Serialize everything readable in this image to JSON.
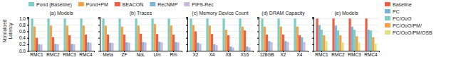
{
  "chart_data": [
    {
      "type": "bar",
      "title": "(a) Models",
      "y_label": "Normalized\nLatency",
      "categories": [
        "RMC1",
        "RMC2",
        "RMC3",
        "RMC4"
      ],
      "series": [
        {
          "name": "Pond (Baseline)",
          "color": "#7ecdc5",
          "values": [
            1.0,
            1.0,
            1.0,
            1.0
          ]
        },
        {
          "name": "Pond+PM",
          "color": "#f5a044",
          "values": [
            0.75,
            0.78,
            0.78,
            0.78
          ]
        },
        {
          "name": "BEACON",
          "color": "#e8604a",
          "values": [
            0.4,
            0.42,
            0.48,
            0.5
          ]
        },
        {
          "name": "RecNMP",
          "color": "#7ab3d4",
          "values": [
            0.2,
            0.21,
            0.21,
            0.26
          ]
        },
        {
          "name": "PIFS-Rec",
          "color": "#c9b8d8",
          "values": [
            0.19,
            0.2,
            0.2,
            0.25
          ]
        }
      ],
      "ylim": [
        0.0,
        1.05
      ],
      "yticks": [
        {
          "value": 0.0,
          "label": "0.0"
        },
        0.2,
        0.4,
        0.6,
        0.8,
        {
          "value": 1.0,
          "label": "1.0"
        }
      ],
      "grid": true,
      "legend": "top"
    },
    {
      "type": "bar",
      "title": "(b) Traces",
      "categories": [
        "Meta",
        "ZF",
        "NoL",
        "Um",
        "Rm"
      ],
      "series": [
        {
          "name": "Pond (Baseline)",
          "color": "#7ecdc5",
          "values": [
            1.0,
            1.0,
            1.0,
            1.0,
            1.0
          ]
        },
        {
          "name": "Pond+PM",
          "color": "#f5a044",
          "values": [
            0.78,
            0.75,
            0.78,
            0.83,
            0.78
          ]
        },
        {
          "name": "BEACON",
          "color": "#e8604a",
          "values": [
            0.5,
            0.5,
            0.53,
            0.52,
            0.5
          ]
        },
        {
          "name": "RecNMP",
          "color": "#7ab3d4",
          "values": [
            0.25,
            0.26,
            0.27,
            0.28,
            0.27
          ]
        },
        {
          "name": "PIFS-Rec",
          "color": "#c9b8d8",
          "values": [
            0.24,
            0.25,
            0.26,
            0.26,
            0.26
          ]
        }
      ],
      "ylim": [
        0.0,
        1.05
      ],
      "yticks": [
        0.0,
        0.2,
        0.4,
        0.6,
        0.8,
        1.0
      ],
      "grid": true,
      "tick_labels": "x"
    },
    {
      "type": "bar",
      "title": "(c) Memory Device Count",
      "categories": [
        "X2",
        "X4",
        "X8",
        "X16"
      ],
      "series": [
        {
          "name": "Pond (Baseline)",
          "color": "#7ecdc5",
          "values": [
            1.0,
            1.0,
            1.0,
            1.0
          ]
        },
        {
          "name": "Pond+PM",
          "color": "#f5a044",
          "values": [
            0.8,
            0.78,
            0.65,
            0.75
          ]
        },
        {
          "name": "BEACON",
          "color": "#e8604a",
          "values": [
            0.6,
            0.52,
            0.48,
            0.63
          ]
        },
        {
          "name": "RecNMP",
          "color": "#7ab3d4",
          "values": [
            0.25,
            0.2,
            0.13,
            0.13
          ]
        },
        {
          "name": "PIFS-Rec",
          "color": "#c9b8d8",
          "values": [
            0.22,
            0.17,
            0.1,
            0.1
          ]
        }
      ],
      "ylim": [
        0.0,
        1.05
      ],
      "yticks": [
        0.0,
        0.2,
        0.4,
        0.6,
        0.8,
        1.0
      ],
      "grid": true,
      "tick_labels": "x"
    },
    {
      "type": "bar",
      "title": "(d) DRAM Capacity",
      "categories": [
        "128GB",
        "X2",
        "X4"
      ],
      "series": [
        {
          "name": "Pond (Baseline)",
          "color": "#7ecdc5",
          "values": [
            1.0,
            1.0,
            1.0
          ]
        },
        {
          "name": "Pond+PM",
          "color": "#f5a044",
          "values": [
            0.75,
            0.75,
            0.75
          ]
        },
        {
          "name": "BEACON",
          "color": "#e8604a",
          "values": [
            0.5,
            0.5,
            0.48
          ]
        },
        {
          "name": "RecNMP",
          "color": "#7ab3d4",
          "values": [
            0.3,
            0.3,
            0.42
          ]
        },
        {
          "name": "PIFS-Rec",
          "color": "#c9b8d8",
          "values": [
            0.27,
            0.27,
            0.27
          ]
        }
      ],
      "ylim": [
        0.0,
        1.05
      ],
      "yticks": [
        0.0,
        0.2,
        0.4,
        0.6,
        0.8,
        1.0
      ],
      "grid": true,
      "tick_labels": "x"
    },
    {
      "type": "bar",
      "title": "(e) Models",
      "categories": [
        "RMC1",
        "RMC2",
        "RMC3",
        "RMC4"
      ],
      "series": [
        {
          "name": "Baseline",
          "color": "#e8604a",
          "values": [
            1.0,
            1.0,
            1.0,
            1.0
          ]
        },
        {
          "name": "PC",
          "color": "#7ab3d4",
          "values": [
            0.8,
            0.78,
            0.75,
            0.65
          ]
        },
        {
          "name": "PC/OoO",
          "color": "#7ecdc5",
          "values": [
            0.65,
            0.63,
            0.65,
            0.63
          ]
        },
        {
          "name": "PC/OoO/PM/",
          "color": "#f5a044",
          "values": [
            0.48,
            0.48,
            0.45,
            0.42
          ]
        },
        {
          "name": "PC/OoO/PM/OSB",
          "color": "#e0e080",
          "values": [
            0.3,
            0.25,
            0.25,
            0.22
          ]
        }
      ],
      "ylim": [
        0.0,
        1.05
      ],
      "yticks": [
        0.0,
        0.2,
        0.4,
        0.6,
        0.8,
        1.0
      ],
      "grid": true,
      "tick_labels": "x",
      "legend": "right"
    }
  ]
}
